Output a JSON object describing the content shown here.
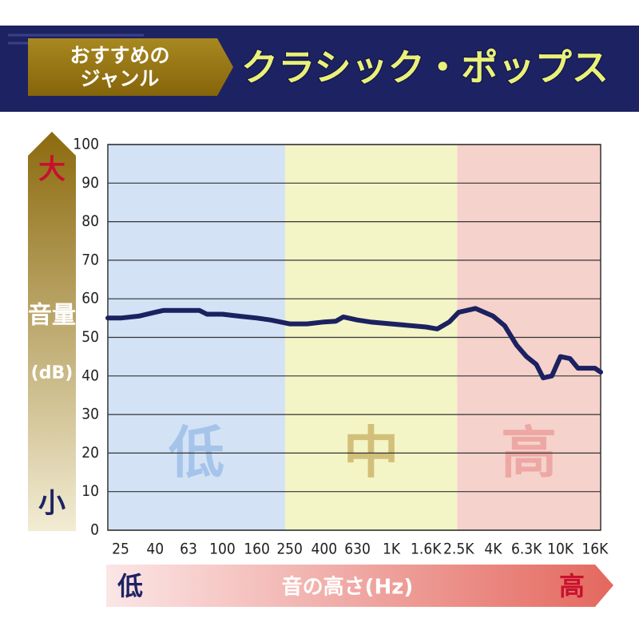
{
  "header": {
    "genre_tag": [
      "おすすめの",
      "ジャンル"
    ],
    "title": "クラシック・ポップス"
  },
  "chart_data": {
    "type": "line",
    "yaxis_ends": {
      "high": "大",
      "low": "小"
    },
    "ylabel": [
      "音量",
      "(dB)"
    ],
    "xaxis_ends": {
      "low": "低",
      "high": "高"
    },
    "xlabel": "音の高さ(Hz)",
    "xscale": "log",
    "xlim": [
      21,
      17300
    ],
    "xticks": [
      25,
      40,
      63,
      100,
      160,
      250,
      400,
      630,
      {
        "value": 1000,
        "label": "1K"
      },
      {
        "value": 1600,
        "label": "1.6K"
      },
      {
        "value": 2500,
        "label": "2.5K"
      },
      {
        "value": 4000,
        "label": "4K"
      },
      {
        "value": 6300,
        "label": "6.3K"
      },
      {
        "value": 10000,
        "label": "10K"
      },
      {
        "value": 16000,
        "label": "16K"
      }
    ],
    "ylim": [
      0,
      100
    ],
    "yticks": [
      0,
      10,
      20,
      30,
      40,
      50,
      60,
      70,
      80,
      90,
      100
    ],
    "grid": true,
    "bands": [
      {
        "label": "低",
        "from": 21,
        "to": 235,
        "color": "#d3e3f5",
        "label_color": "#a6c4ea"
      },
      {
        "label": "中",
        "from": 235,
        "to": 2450,
        "color": "#f3f5c6",
        "label_color": "#d2c07a"
      },
      {
        "label": "高",
        "from": 2450,
        "to": 17300,
        "color": "#f6d2cc",
        "label_color": "#eda8a3"
      }
    ],
    "color": "#1c2160",
    "x": [
      21,
      25,
      32,
      40,
      45,
      63,
      73,
      81,
      100,
      125,
      160,
      194,
      250,
      317,
      400,
      470,
      520,
      630,
      750,
      1000,
      1600,
      1870,
      2200,
      2500,
      3140,
      4000,
      4680,
      5500,
      6300,
      7200,
      7900,
      8900,
      10000,
      11400,
      12700,
      16000,
      17300
    ],
    "values": [
      55,
      55,
      55.5,
      56.5,
      57,
      57,
      57,
      56,
      56,
      55.5,
      55,
      54.5,
      53.5,
      53.5,
      54,
      54.2,
      55.3,
      54.5,
      54,
      53.5,
      52.7,
      52.2,
      54,
      56.5,
      57.5,
      55.5,
      53,
      48,
      45,
      43,
      39.5,
      40,
      45,
      44.5,
      42,
      42,
      41
    ]
  }
}
